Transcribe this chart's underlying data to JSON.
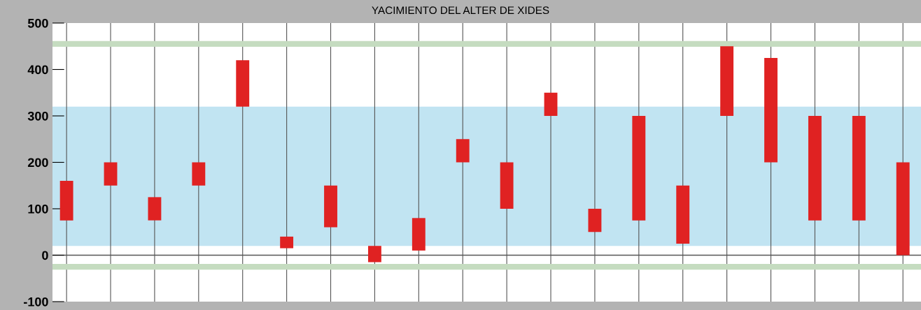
{
  "chart_data": {
    "type": "bar",
    "title": "YACIMIENTO DEL ALTER DE XIDES",
    "categories": [
      null,
      null,
      null,
      null,
      null,
      null,
      null,
      null,
      null,
      null,
      null,
      null,
      null,
      null,
      null,
      null,
      null,
      null,
      null,
      null
    ],
    "base": [
      75,
      150,
      75,
      150,
      320,
      15,
      60,
      -15,
      10,
      200,
      100,
      300,
      50,
      75,
      25,
      300,
      200,
      75,
      75,
      0
    ],
    "values": [
      85,
      50,
      50,
      50,
      100,
      25,
      90,
      35,
      70,
      50,
      100,
      50,
      50,
      225,
      125,
      150,
      225,
      225,
      225,
      200
    ],
    "color": "#e02222",
    "ylim": [
      -100,
      500
    ],
    "yticks": [
      -100,
      0,
      100,
      200,
      300,
      400,
      500
    ],
    "grid": "x",
    "bands": [
      {
        "axis": "y",
        "from": 20,
        "to": 320,
        "color": "#a6d9ec"
      }
    ],
    "ref_lines": [
      {
        "axis": "y",
        "value": 455,
        "color": "#c5dcc0"
      },
      {
        "axis": "y",
        "value": -25,
        "color": "#c5dcc0"
      },
      {
        "axis": "y",
        "value": 0,
        "color": "#555555"
      }
    ]
  }
}
